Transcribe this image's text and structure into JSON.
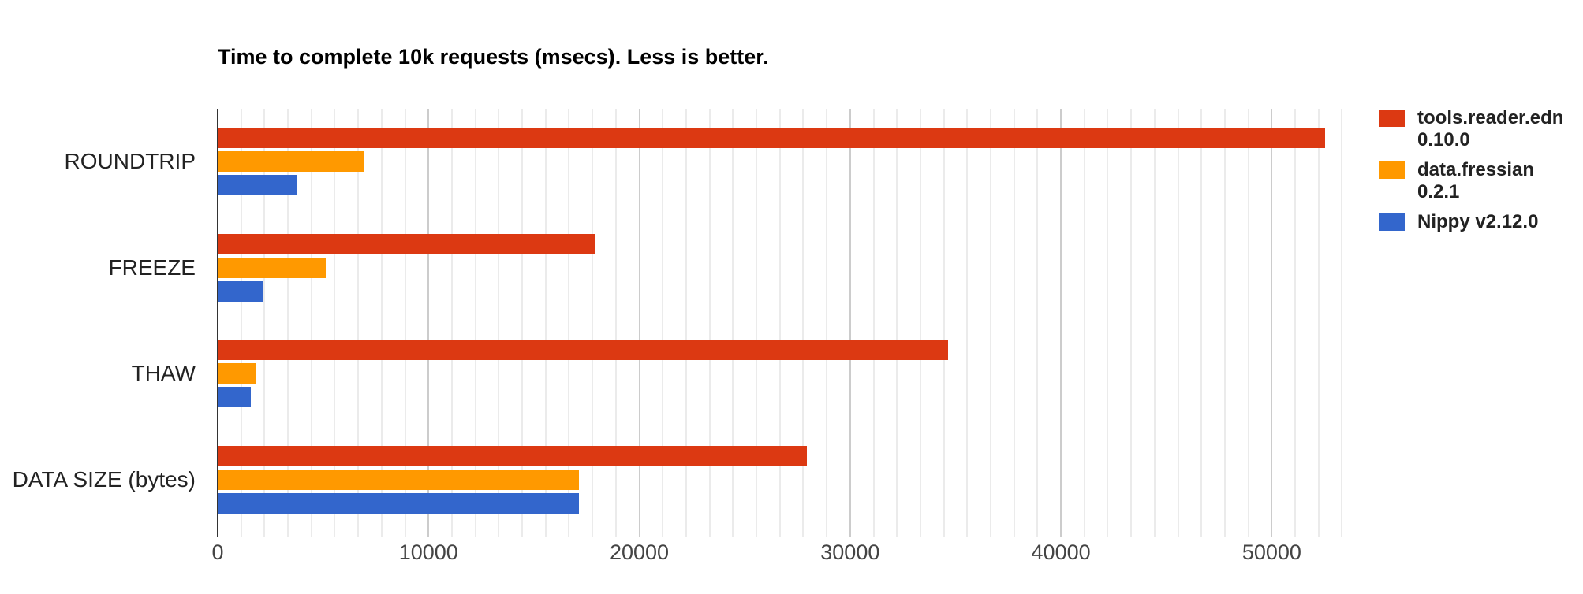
{
  "title": "Time to complete 10k requests (msecs). Less is better.",
  "colors": {
    "series_red": "#dc3912",
    "series_orange": "#ff9900",
    "series_blue": "#3366cc",
    "axis_baseline": "#333333",
    "major_gridline": "#cccccc",
    "minor_gridline": "#ebebeb",
    "title_text": "#000000",
    "category_text": "#222222",
    "tick_text": "#444444",
    "background": "#ffffff"
  },
  "chart_data": {
    "type": "bar",
    "orientation": "horizontal",
    "title": "Time to complete 10k requests (msecs). Less is better.",
    "categories": [
      "ROUNDTRIP",
      "FREEZE",
      "THAW",
      "DATA SIZE (bytes)"
    ],
    "series": [
      {
        "name": "tools.reader.edn 0.10.0",
        "label_lines": [
          "tools.reader.edn",
          "0.10.0"
        ],
        "color": "#dc3912",
        "values": [
          52500,
          17900,
          34600,
          27900
        ]
      },
      {
        "name": "data.fressian 0.2.1",
        "label_lines": [
          "data.fressian",
          "0.2.1"
        ],
        "color": "#ff9900",
        "values": [
          6900,
          5100,
          1800,
          17100
        ]
      },
      {
        "name": "Nippy v2.12.0",
        "label_lines": [
          "Nippy v2.12.0"
        ],
        "color": "#3366cc",
        "values": [
          3700,
          2150,
          1550,
          17100
        ]
      }
    ],
    "x_ticks": [
      0,
      10000,
      20000,
      30000,
      40000,
      50000
    ],
    "x_tick_labels": [
      "0",
      "10000",
      "20000",
      "30000",
      "40000",
      "50000"
    ],
    "xlim": [
      0,
      55000
    ],
    "minor_per_major": 9,
    "gridline_max": 53400,
    "grid": true,
    "legend_position": "right",
    "xlabel": "",
    "ylabel": ""
  }
}
